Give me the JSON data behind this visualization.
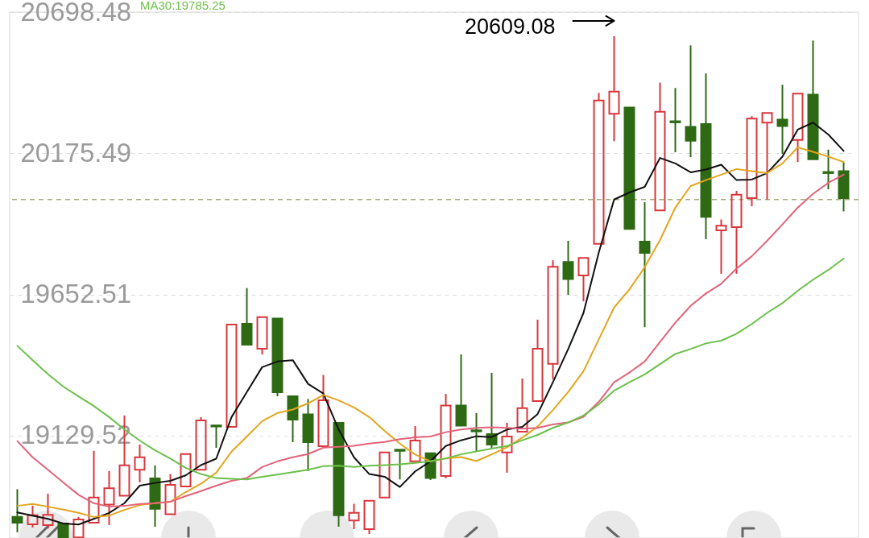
{
  "chart_data": {
    "type": "candlestick",
    "categories": [
      null,
      null,
      null,
      null,
      null,
      null,
      null,
      null,
      null,
      null,
      null,
      null,
      null,
      null,
      null,
      null,
      null,
      null,
      null,
      null,
      null,
      null,
      null,
      null,
      null,
      null,
      null,
      null,
      null,
      null,
      null,
      null,
      null,
      null,
      null,
      null,
      null,
      null,
      null,
      null,
      null,
      null,
      null,
      null,
      null,
      null,
      null,
      null,
      null,
      null,
      null,
      null,
      null,
      null,
      null
    ],
    "ohlc": [
      [
        18828,
        18931,
        18771,
        18807
      ],
      [
        18801,
        18870,
        18789,
        18834
      ],
      [
        18798,
        18914,
        18785,
        18836
      ],
      [
        18804,
        18804,
        18752,
        18752
      ],
      [
        18752,
        18828,
        18752,
        18819
      ],
      [
        18807,
        19073,
        18807,
        18900
      ],
      [
        18874,
        18998,
        18798,
        18934
      ],
      [
        18907,
        19204,
        18907,
        19019
      ],
      [
        19003,
        19096,
        18956,
        19049
      ],
      [
        18971,
        19019,
        18792,
        18858
      ],
      [
        18838,
        18987,
        18838,
        18947
      ],
      [
        18941,
        19061,
        18941,
        19061
      ],
      [
        19003,
        19198,
        19003,
        19186
      ],
      [
        19167,
        19167,
        19084,
        19163
      ],
      [
        19162,
        19541,
        19162,
        19541
      ],
      [
        19544,
        19676,
        19466,
        19466
      ],
      [
        19451,
        19568,
        19430,
        19568
      ],
      [
        19563,
        19563,
        19275,
        19290
      ],
      [
        19275,
        19275,
        19105,
        19189
      ],
      [
        19208,
        19265,
        18998,
        19105
      ],
      [
        19090,
        19354,
        19090,
        19260
      ],
      [
        19177,
        19177,
        18792,
        18834
      ],
      [
        18815,
        18877,
        18783,
        18843
      ],
      [
        18783,
        18888,
        18765,
        18888
      ],
      [
        18900,
        19067,
        18900,
        19067
      ],
      [
        19077,
        19077,
        18967,
        19073
      ],
      [
        19034,
        19165,
        19034,
        19111
      ],
      [
        19064,
        19064,
        18965,
        18972
      ],
      [
        18980,
        19284,
        18971,
        19241
      ],
      [
        19241,
        19430,
        19166,
        19166
      ],
      [
        19149,
        19213,
        19070,
        19145
      ],
      [
        19135,
        19362,
        19082,
        19096
      ],
      [
        19067,
        19177,
        18992,
        19126
      ],
      [
        19144,
        19341,
        19144,
        19231
      ],
      [
        19257,
        19559,
        19257,
        19451
      ],
      [
        19395,
        19779,
        19338,
        19755
      ],
      [
        19773,
        19851,
        19651,
        19709
      ],
      [
        19723,
        19788,
        19627,
        19788
      ],
      [
        19840,
        20399,
        19840,
        20371
      ],
      [
        20322,
        20609.08,
        20220,
        20404
      ],
      [
        20345,
        20345,
        19895,
        19895
      ],
      [
        19848,
        19994,
        19531,
        19806
      ],
      [
        19964,
        20437,
        19964,
        20329
      ],
      [
        20294,
        20417,
        20179,
        20290
      ],
      [
        20273,
        20575,
        20161,
        20222
      ],
      [
        20284,
        20471,
        19857,
        19940
      ],
      [
        19890,
        19930,
        19729,
        19907
      ],
      [
        19902,
        20036,
        19729,
        20022
      ],
      [
        20009,
        20313,
        19979,
        20304
      ],
      [
        20289,
        20325,
        20004,
        20325
      ],
      [
        20300,
        20429,
        20173,
        20276
      ],
      [
        20225,
        20396,
        20143,
        20396
      ],
      [
        20393,
        20593,
        20153,
        20153
      ],
      [
        20106,
        20189,
        20042,
        20102
      ],
      [
        20109,
        20143,
        19960,
        20009
      ]
    ],
    "colors": [
      "#2e6a14",
      "#d8373d",
      "#d8373d",
      "#2e6a14",
      "#d8373d",
      "#d8373d",
      "#d8373d",
      "#d8373d",
      "#d8373d",
      "#2e6a14",
      "#d8373d",
      "#d8373d",
      "#d8373d",
      "#2e6a14",
      "#d8373d",
      "#2e6a14",
      "#d8373d",
      "#2e6a14",
      "#2e6a14",
      "#2e6a14",
      "#d8373d",
      "#2e6a14",
      "#d8373d",
      "#d8373d",
      "#d8373d",
      "#2e6a14",
      "#d8373d",
      "#2e6a14",
      "#d8373d",
      "#2e6a14",
      "#2e6a14",
      "#2e6a14",
      "#d8373d",
      "#d8373d",
      "#d8373d",
      "#d8373d",
      "#2e6a14",
      "#d8373d",
      "#d8373d",
      "#d8373d",
      "#2e6a14",
      "#2e6a14",
      "#d8373d",
      "#2e6a14",
      "#2e6a14",
      "#2e6a14",
      "#d8373d",
      "#d8373d",
      "#d8373d",
      "#d8373d",
      "#2e6a14",
      "#d8373d",
      "#2e6a14",
      "#2e6a14",
      "#2e6a14"
    ],
    "series": [
      {
        "type": "line",
        "color": "#111111",
        "values": [
          18845,
          18833,
          18821,
          18804,
          18800,
          18821,
          18843,
          18879,
          18944,
          18954,
          18962,
          18982,
          19020,
          19044,
          19198,
          19291,
          19383,
          19404,
          19409,
          19321,
          19285,
          19152,
          19049,
          18987,
          18977,
          18939,
          18997,
          19034,
          19091,
          19112,
          19127,
          19124,
          19152,
          19162,
          19209,
          19327,
          19450,
          19584,
          19808,
          20004,
          20030,
          20051,
          20158,
          20138,
          20105,
          20115,
          20133,
          20076,
          20078,
          20102,
          20163,
          20263,
          20289,
          20245,
          20184
        ]
      },
      {
        "type": "line",
        "color": "#e3a51e",
        "values": [
          18869,
          18876,
          18866,
          18855,
          18843,
          18828,
          18833,
          18854,
          18872,
          18879,
          18884,
          18920,
          18951,
          18992,
          19070,
          19126,
          19183,
          19213,
          19226,
          19249,
          19280,
          19260,
          19234,
          19198,
          19147,
          19100,
          19059,
          19034,
          19045,
          19050,
          19035,
          19060,
          19086,
          19122,
          19163,
          19224,
          19291,
          19368,
          19486,
          19604,
          19671,
          19753,
          19854,
          19974,
          20054,
          20076,
          20096,
          20117,
          20109,
          20102,
          20138,
          20197,
          20181,
          20163,
          20143
        ]
      },
      {
        "type": "line",
        "color": "#e2637b",
        "values": [
          19109,
          19049,
          19003,
          18956,
          18910,
          18879,
          18866,
          18869,
          18876,
          18879,
          18884,
          18905,
          18924,
          18944,
          18962,
          18972,
          19013,
          19034,
          19049,
          19061,
          19085,
          19088,
          19092,
          19100,
          19106,
          19116,
          19123,
          19126,
          19142,
          19152,
          19158,
          19160,
          19158,
          19155,
          19158,
          19171,
          19178,
          19199,
          19255,
          19327,
          19363,
          19404,
          19476,
          19548,
          19610,
          19656,
          19692,
          19748,
          19794,
          19851,
          19912,
          19974,
          20025,
          20066,
          20096
        ]
      },
      {
        "type": "line",
        "name": "MA30:19785.25",
        "color": "#6cc04a",
        "values": [
          19462,
          19409,
          19357,
          19311,
          19275,
          19239,
          19198,
          19152,
          19111,
          19075,
          19044,
          19010,
          18987,
          18972,
          18969,
          18967,
          18977,
          18985,
          18994,
          19003,
          19016,
          19018,
          19013,
          19018,
          19020,
          19023,
          19028,
          19034,
          19045,
          19060,
          19071,
          19081,
          19091,
          19112,
          19132,
          19158,
          19178,
          19204,
          19245,
          19296,
          19327,
          19356,
          19394,
          19432,
          19450,
          19471,
          19481,
          19507,
          19543,
          19584,
          19620,
          19666,
          19707,
          19743,
          19785.25
        ]
      }
    ],
    "ylim": [
      18750,
      20698.48
    ],
    "yticks": [
      19129.52,
      19652.51,
      20175.49,
      20698.48
    ],
    "grid": "y",
    "tick_labels": "y",
    "legend": "top left",
    "ref_lines": [
      {
        "axis": "y",
        "value": 20004,
        "color": "#a9aa7c",
        "line_style": "dashed"
      }
    ],
    "annotations": [
      "20609.08"
    ]
  }
}
